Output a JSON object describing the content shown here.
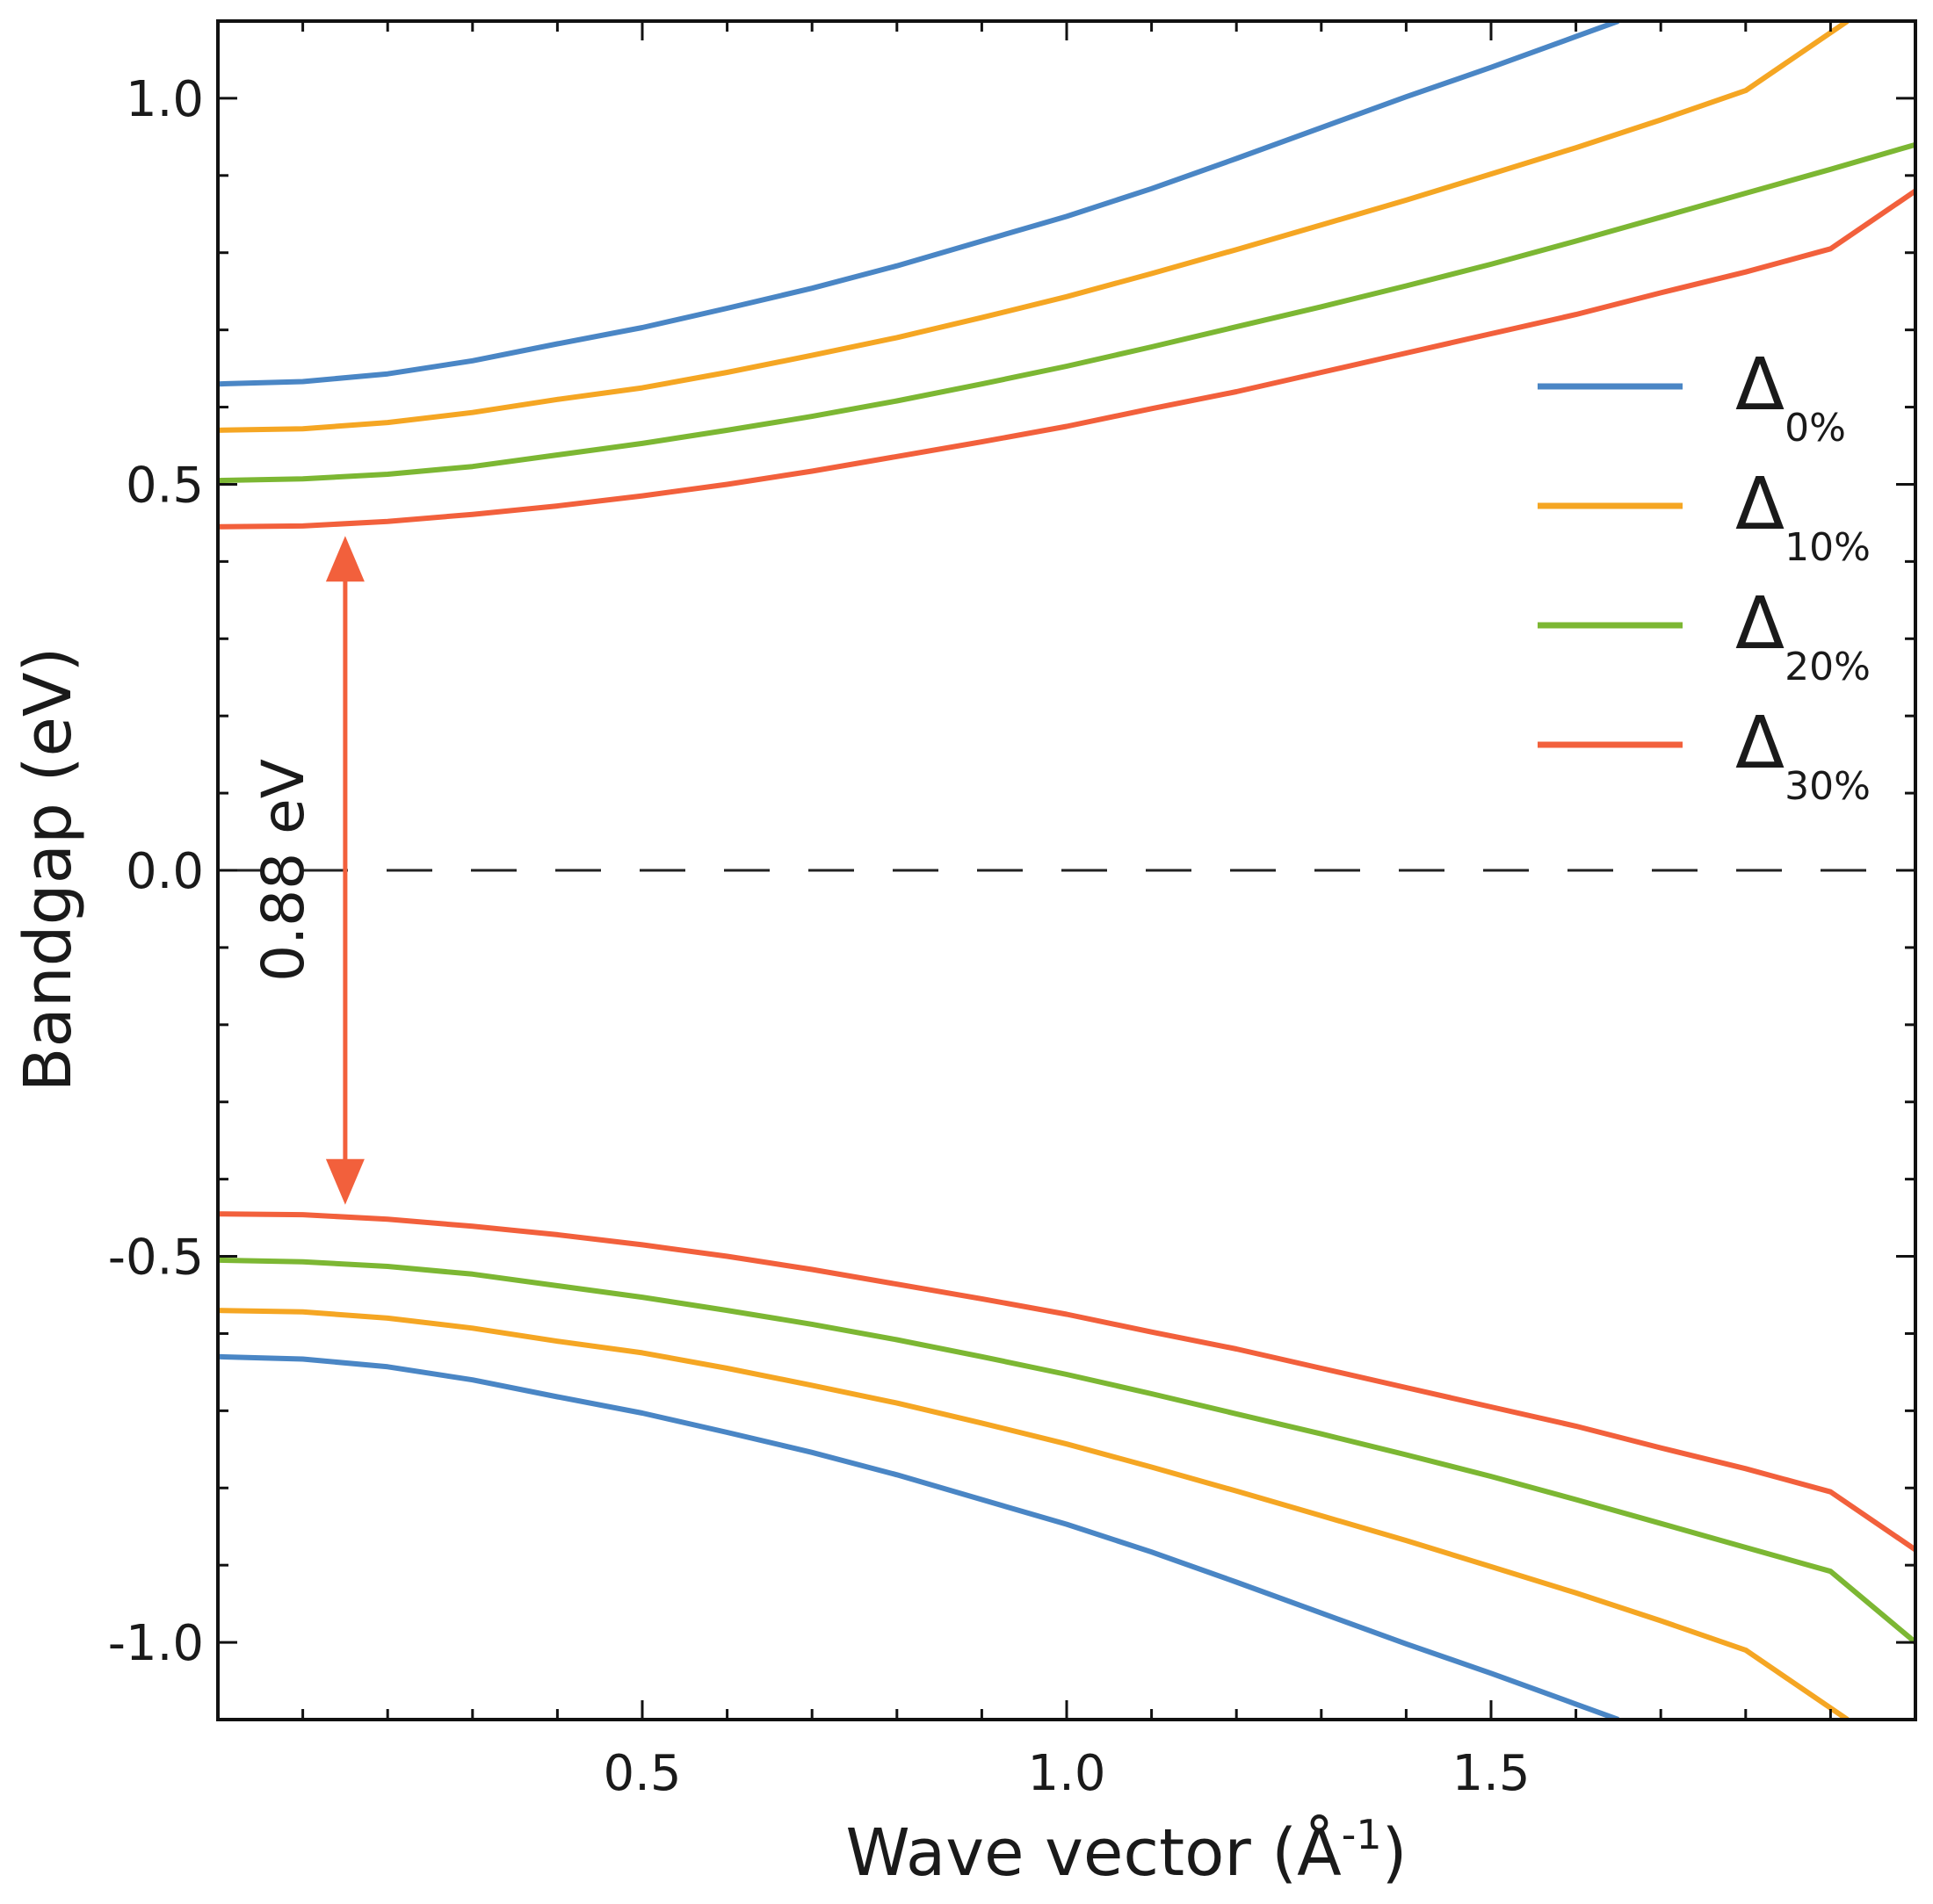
{
  "chart_data": {
    "type": "line",
    "title": "",
    "xlabel": "Wave vector (Å",
    "xlabel_sup": "-1",
    "xlabel_close": ")",
    "ylabel": "Bandgap (eV)",
    "xlim": [
      0.0,
      2.0
    ],
    "ylim": [
      -1.1,
      1.1
    ],
    "xticks": [
      0.5,
      1.0,
      1.5
    ],
    "xtick_labels": [
      "0.5",
      "1.0",
      "1.5"
    ],
    "x_minor_step": 0.1,
    "yticks": [
      1.0,
      0.5,
      0.0,
      -0.5,
      -1.0
    ],
    "ytick_labels": [
      "1.0",
      "0.5",
      "0.0",
      "-0.5",
      "-1.0"
    ],
    "y_minor_step": 0.1,
    "grid": false,
    "legend_position": "right",
    "zero_line": {
      "y": 0.0,
      "style": "dashed",
      "color": "#222222"
    },
    "series": [
      {
        "name": "Δ",
        "subscript": "0%",
        "color": "#4a86c5",
        "gap": 1.26,
        "x": [
          0.0,
          0.1,
          0.2,
          0.3,
          0.4,
          0.5,
          0.6,
          0.7,
          0.8,
          0.9,
          1.0,
          1.1,
          1.2,
          1.3,
          1.4,
          1.5,
          1.6,
          1.65
        ],
        "y_upper": [
          0.63,
          0.633,
          0.643,
          0.66,
          0.682,
          0.703,
          0.728,
          0.754,
          0.783,
          0.815,
          0.847,
          0.883,
          0.922,
          0.962,
          1.002,
          1.04,
          1.08,
          1.1
        ],
        "y_lower": [
          -0.63,
          -0.633,
          -0.643,
          -0.66,
          -0.682,
          -0.703,
          -0.728,
          -0.754,
          -0.783,
          -0.815,
          -0.847,
          -0.883,
          -0.922,
          -0.962,
          -1.002,
          -1.04,
          -1.08,
          -1.1
        ]
      },
      {
        "name": "Δ",
        "subscript": "10%",
        "color": "#f5a623",
        "gap": 1.14,
        "x": [
          0.0,
          0.1,
          0.2,
          0.3,
          0.4,
          0.5,
          0.6,
          0.7,
          0.8,
          0.9,
          1.0,
          1.1,
          1.2,
          1.3,
          1.4,
          1.5,
          1.6,
          1.7,
          1.8,
          1.92
        ],
        "y_upper": [
          0.57,
          0.572,
          0.58,
          0.593,
          0.61,
          0.625,
          0.645,
          0.667,
          0.69,
          0.716,
          0.743,
          0.773,
          0.804,
          0.836,
          0.868,
          0.902,
          0.936,
          0.972,
          1.01,
          1.1
        ],
        "y_lower": [
          -0.57,
          -0.572,
          -0.58,
          -0.593,
          -0.61,
          -0.625,
          -0.645,
          -0.667,
          -0.69,
          -0.716,
          -0.743,
          -0.773,
          -0.804,
          -0.836,
          -0.868,
          -0.902,
          -0.936,
          -0.972,
          -1.01,
          -1.1
        ]
      },
      {
        "name": "Δ",
        "subscript": "20%",
        "color": "#7cb733",
        "gap": 1.0,
        "x": [
          0.0,
          0.1,
          0.2,
          0.3,
          0.4,
          0.5,
          0.6,
          0.7,
          0.8,
          0.9,
          1.0,
          1.1,
          1.2,
          1.3,
          1.4,
          1.5,
          1.6,
          1.7,
          1.8,
          1.9,
          2.0
        ],
        "y_upper": [
          0.505,
          0.507,
          0.513,
          0.523,
          0.538,
          0.553,
          0.57,
          0.588,
          0.608,
          0.63,
          0.653,
          0.678,
          0.704,
          0.73,
          0.757,
          0.785,
          0.815,
          0.846,
          0.877,
          0.908,
          0.94
        ],
        "y_lower": [
          -0.505,
          -0.507,
          -0.513,
          -0.523,
          -0.538,
          -0.553,
          -0.57,
          -0.588,
          -0.608,
          -0.63,
          -0.653,
          -0.678,
          -0.704,
          -0.73,
          -0.757,
          -0.785,
          -0.815,
          -0.846,
          -0.877,
          -0.908,
          -1.0
        ]
      },
      {
        "name": "Δ",
        "subscript": "30%",
        "color": "#f2603c",
        "gap": 0.88,
        "x": [
          0.0,
          0.1,
          0.2,
          0.3,
          0.4,
          0.5,
          0.6,
          0.7,
          0.8,
          0.9,
          1.0,
          1.1,
          1.2,
          1.3,
          1.4,
          1.5,
          1.6,
          1.7,
          1.8,
          1.9,
          2.0
        ],
        "y_upper": [
          0.445,
          0.446,
          0.452,
          0.461,
          0.472,
          0.485,
          0.5,
          0.517,
          0.536,
          0.555,
          0.575,
          0.598,
          0.62,
          0.645,
          0.67,
          0.695,
          0.72,
          0.748,
          0.775,
          0.805,
          0.88
        ],
        "y_lower": [
          -0.445,
          -0.446,
          -0.452,
          -0.461,
          -0.472,
          -0.485,
          -0.5,
          -0.517,
          -0.536,
          -0.555,
          -0.575,
          -0.598,
          -0.62,
          -0.645,
          -0.67,
          -0.695,
          -0.72,
          -0.748,
          -0.775,
          -0.805,
          -0.88
        ]
      }
    ],
    "annotation": {
      "text": "0.88 eV",
      "x": 0.15,
      "y_top": 0.44,
      "y_bottom": -0.44,
      "color": "#f2603c"
    }
  }
}
